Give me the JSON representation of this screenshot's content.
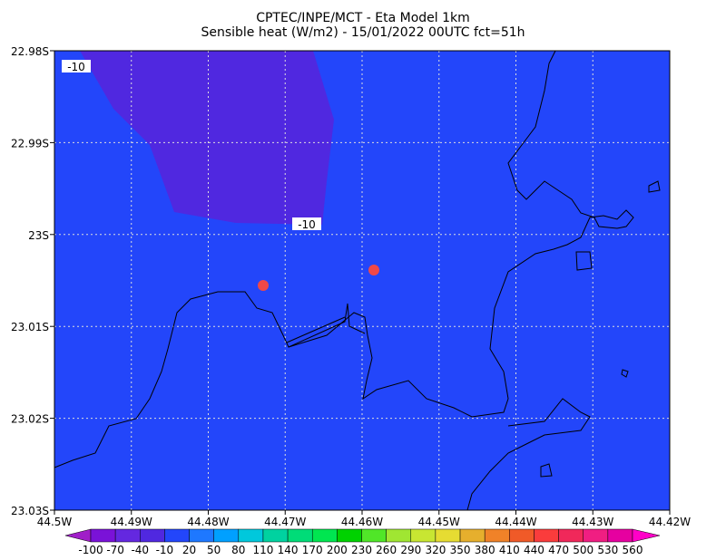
{
  "header": {
    "title": "CPTEC/INPE/MCT -  Eta Model 1km",
    "subtitle": "Sensible heat (W/m2) - 15/01/2022 00UTC fct=51h"
  },
  "map": {
    "lat_ticks": [
      "22.98S",
      "22.99S",
      "23S",
      "23.01S",
      "23.02S",
      "23.03S"
    ],
    "lon_ticks": [
      "44.5W",
      "44.49W",
      "44.48W",
      "44.47W",
      "44.46W",
      "44.45W",
      "44.44W",
      "44.43W",
      "44.42W"
    ],
    "contour_labels": [
      "-10",
      "-10"
    ],
    "field_color": "#2346fa",
    "low_region_color": "#5028e0",
    "marker_color": "#f04848"
  },
  "colorbar": {
    "levels": [
      -100,
      -70,
      -40,
      -10,
      20,
      50,
      80,
      110,
      140,
      170,
      200,
      230,
      260,
      290,
      320,
      350,
      380,
      410,
      440,
      470,
      500,
      530,
      560
    ],
    "colors": [
      "#a01ec8",
      "#7a12d8",
      "#6428e0",
      "#5028e0",
      "#2346fa",
      "#1e78ff",
      "#00a0ff",
      "#00c8dc",
      "#00d2a0",
      "#00dc78",
      "#00e650",
      "#00d200",
      "#50e628",
      "#a0e632",
      "#c8e632",
      "#e6dc32",
      "#e6af2d",
      "#f08228",
      "#f05a28",
      "#fa3c3c",
      "#f0285a",
      "#f01e82",
      "#e600a0",
      "#ff00c8"
    ]
  }
}
